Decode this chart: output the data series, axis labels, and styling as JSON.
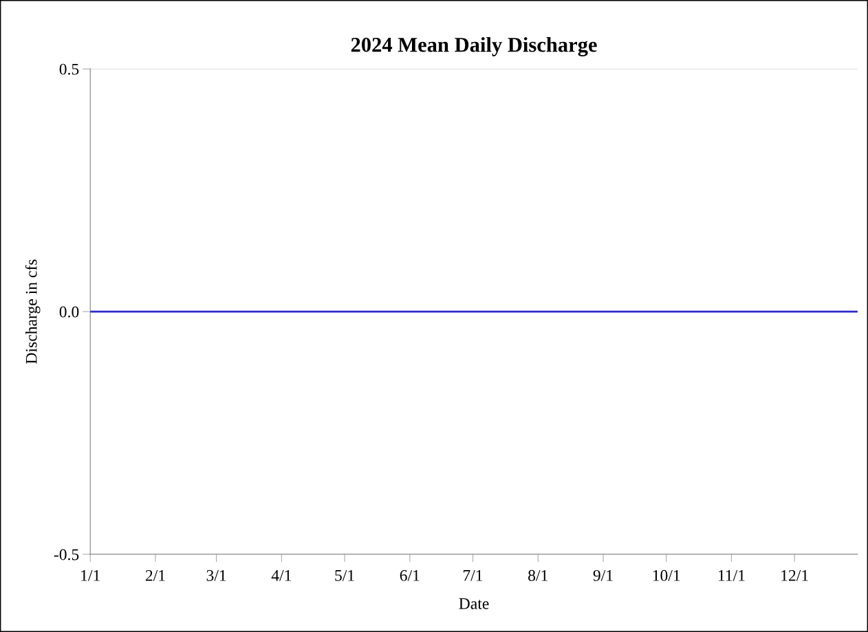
{
  "chart_data": {
    "type": "line",
    "title": "2024 Mean Daily Discharge",
    "xlabel": "Date",
    "ylabel": "Discharge in cfs",
    "x": [
      "2024-01-01",
      "2024-01-15",
      "2024-02-01",
      "2024-02-15",
      "2024-03-01",
      "2024-03-15",
      "2024-04-01",
      "2024-04-15",
      "2024-05-01",
      "2024-05-15",
      "2024-06-01",
      "2024-06-15",
      "2024-07-01",
      "2024-07-15",
      "2024-08-01",
      "2024-08-15",
      "2024-09-01",
      "2024-09-15",
      "2024-10-01",
      "2024-10-15",
      "2024-11-01",
      "2024-11-15",
      "2024-12-01",
      "2024-12-15",
      "2024-12-31"
    ],
    "series": [
      {
        "color": "#2a2ac8",
        "values": [
          0,
          0,
          0,
          0,
          0,
          0,
          0,
          0,
          0,
          0,
          0,
          0,
          0,
          0,
          0,
          0,
          0,
          0,
          0,
          0,
          0,
          0,
          0,
          0,
          0
        ]
      }
    ],
    "xlim": [
      "2024-01-01",
      "2024-12-31"
    ],
    "xticks": [
      {
        "value": "2024-01-01",
        "label": "1/1"
      },
      {
        "value": "2024-02-01",
        "label": "2/1"
      },
      {
        "value": "2024-03-01",
        "label": "3/1"
      },
      {
        "value": "2024-04-01",
        "label": "4/1"
      },
      {
        "value": "2024-05-01",
        "label": "5/1"
      },
      {
        "value": "2024-06-01",
        "label": "6/1"
      },
      {
        "value": "2024-07-01",
        "label": "7/1"
      },
      {
        "value": "2024-08-01",
        "label": "8/1"
      },
      {
        "value": "2024-09-01",
        "label": "9/1"
      },
      {
        "value": "2024-10-01",
        "label": "10/1"
      },
      {
        "value": "2024-11-01",
        "label": "11/1"
      },
      {
        "value": "2024-12-01",
        "label": "12/1"
      }
    ],
    "ylim": [
      -0.5,
      0.5
    ],
    "yticks": [
      {
        "value": -0.5,
        "label": "-0.5"
      },
      {
        "value": 0,
        "label": "0.0"
      },
      {
        "value": 0.5,
        "label": "0.5"
      }
    ],
    "grid": "y",
    "legend": false
  }
}
